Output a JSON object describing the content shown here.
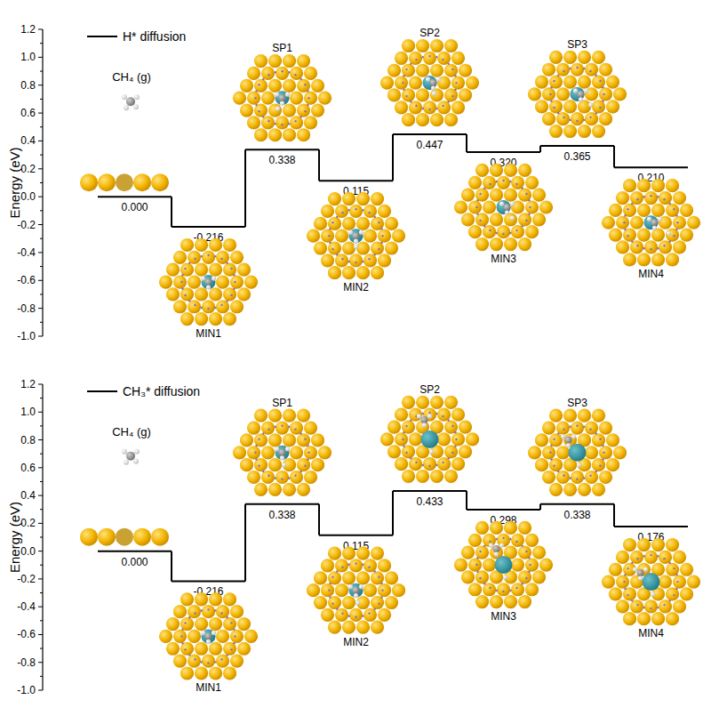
{
  "chart_data": [
    {
      "type": "step",
      "legend": "upper left",
      "data_labels": true,
      "y_label": "Energy (eV)",
      "annotations": [
        "CH₄ (g)"
      ],
      "categories": [
        null,
        "MIN1",
        "SP1",
        "MIN2",
        "SP2",
        "MIN3",
        "SP3",
        "MIN4"
      ],
      "series": [
        {
          "name": "H* diffusion",
          "color": "#000000",
          "values": [
            0.0,
            -0.216,
            0.338,
            0.115,
            0.447,
            0.32,
            0.365,
            0.21
          ],
          "value_labels": [
            "0.000",
            "-0.216",
            "0.338",
            "0.115",
            "0.447",
            "0.320",
            "0.365",
            "0.210"
          ]
        }
      ],
      "ylim": [
        -1.0,
        1.2
      ],
      "yticks": [
        {
          "value": -1,
          "label": "-1.0"
        },
        -0.8,
        -0.6,
        -0.4,
        -0.2,
        {
          "value": 0,
          "label": "0.0"
        },
        0.2,
        0.4,
        0.6,
        0.8,
        {
          "value": 1,
          "label": "1.0"
        },
        1.2
      ]
    },
    {
      "type": "step",
      "legend": "upper left",
      "data_labels": true,
      "y_label": "Energy (eV)",
      "annotations": [
        "CH₄ (g)"
      ],
      "categories": [
        null,
        "MIN1",
        "SP1",
        "MIN2",
        "SP2",
        "MIN3",
        "SP3",
        "MIN4"
      ],
      "series": [
        {
          "name": "CH₃* diffusion",
          "color": "#000000",
          "values": [
            0.0,
            -0.216,
            0.338,
            0.115,
            0.433,
            0.298,
            0.338,
            0.176
          ],
          "value_labels": [
            "0.000",
            "-0.216",
            "0.338",
            "0.115",
            "0.433",
            "0.298",
            "0.338",
            "0.176"
          ]
        }
      ],
      "ylim": [
        -1.0,
        1.2
      ],
      "yticks": [
        {
          "value": -1,
          "label": "-1.0"
        },
        -0.8,
        -0.6,
        -0.4,
        -0.2,
        {
          "value": 0,
          "label": "0.0"
        },
        0.2,
        0.4,
        0.6,
        0.8,
        {
          "value": 1,
          "label": "1.0"
        },
        1.2
      ]
    }
  ]
}
